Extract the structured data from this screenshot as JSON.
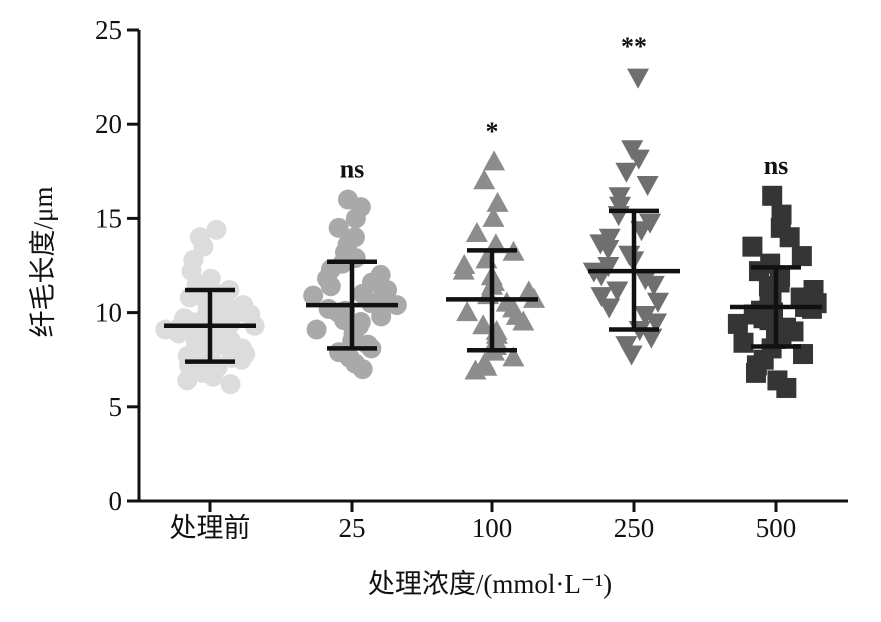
{
  "chart_data": {
    "type": "scatter",
    "xlabel": "处理浓度/(mmol·L⁻¹)",
    "ylabel": "纤毛长度/μm",
    "ylim": [
      0,
      25
    ],
    "yticks": [
      0,
      5,
      10,
      15,
      20,
      25
    ],
    "grid": false,
    "legend": "none",
    "categories": [
      "处理前",
      "25",
      "100",
      "250",
      "500"
    ],
    "series": [
      {
        "category": "处理前",
        "marker": "circle",
        "color": "#dcdcdc",
        "mean": 9.3,
        "sd_low": 7.4,
        "sd_high": 11.2,
        "significance": "",
        "values": [
          6.2,
          6.4,
          6.6,
          6.8,
          7.0,
          7.1,
          7.2,
          7.3,
          7.4,
          7.5,
          7.6,
          7.7,
          7.8,
          7.9,
          8.0,
          8.1,
          8.2,
          8.3,
          8.4,
          8.5,
          8.6,
          8.7,
          8.8,
          8.9,
          9.0,
          9.0,
          9.1,
          9.2,
          9.3,
          9.3,
          9.4,
          9.5,
          9.6,
          9.7,
          9.8,
          9.9,
          10.0,
          10.1,
          10.2,
          10.3,
          10.4,
          10.6,
          10.8,
          11.0,
          11.2,
          11.5,
          11.8,
          12.2,
          12.8,
          13.5,
          14.0,
          14.4
        ]
      },
      {
        "category": "25",
        "marker": "circle",
        "color": "#a9a9a9",
        "mean": 10.4,
        "sd_low": 8.1,
        "sd_high": 12.7,
        "significance": "ns",
        "values": [
          7.0,
          7.3,
          7.6,
          7.9,
          8.1,
          8.3,
          8.5,
          8.7,
          8.9,
          9.1,
          9.3,
          9.5,
          9.6,
          9.8,
          10.0,
          10.1,
          10.2,
          10.4,
          10.5,
          10.6,
          10.8,
          10.9,
          11.0,
          11.2,
          11.4,
          11.6,
          11.8,
          12.0,
          12.3,
          12.6,
          12.9,
          13.2,
          13.6,
          14.0,
          14.5,
          15.0,
          15.6,
          16.0
        ]
      },
      {
        "category": "100",
        "marker": "triangle-up",
        "color": "#8c8c8c",
        "mean": 10.7,
        "sd_low": 8.0,
        "sd_high": 13.3,
        "significance": "*",
        "values": [
          6.9,
          7.1,
          7.3,
          7.6,
          7.9,
          8.2,
          8.5,
          8.8,
          9.0,
          9.3,
          9.5,
          9.8,
          10.0,
          10.2,
          10.5,
          10.7,
          10.9,
          11.1,
          11.4,
          11.6,
          11.9,
          12.2,
          12.5,
          12.8,
          13.2,
          13.6,
          14.2,
          15.0,
          15.8,
          17.0,
          18.0
        ]
      },
      {
        "category": "250",
        "marker": "triangle-down",
        "color": "#6f6f6f",
        "mean": 12.2,
        "sd_low": 9.1,
        "sd_high": 15.4,
        "significance": "**",
        "values": [
          7.8,
          8.3,
          8.7,
          9.1,
          9.5,
          9.9,
          10.3,
          10.6,
          10.9,
          11.2,
          11.5,
          11.8,
          12.0,
          12.2,
          12.5,
          12.8,
          13.1,
          13.4,
          13.7,
          14.0,
          14.4,
          14.8,
          15.2,
          15.7,
          16.2,
          16.8,
          17.5,
          18.2,
          18.7,
          22.5
        ]
      },
      {
        "category": "500",
        "marker": "square",
        "color": "#353535",
        "mean": 10.3,
        "sd_low": 8.2,
        "sd_high": 12.4,
        "significance": "ns",
        "values": [
          6.0,
          6.4,
          6.8,
          7.2,
          7.5,
          7.8,
          8.1,
          8.4,
          8.6,
          8.8,
          9.0,
          9.2,
          9.4,
          9.6,
          9.7,
          9.9,
          10.0,
          10.1,
          10.2,
          10.3,
          10.4,
          10.5,
          10.6,
          10.8,
          11.0,
          11.2,
          11.4,
          11.6,
          11.9,
          12.2,
          12.6,
          13.0,
          13.5,
          14.0,
          14.5,
          15.2,
          16.2
        ]
      }
    ]
  }
}
